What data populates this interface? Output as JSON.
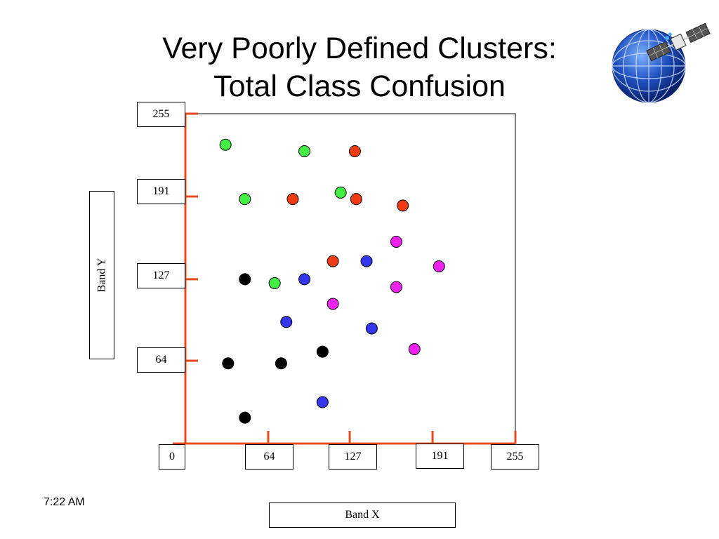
{
  "slide": {
    "title_line1": "Very Poorly Defined Clusters:",
    "title_line2": "Total Class Confusion",
    "time": "7:22 AM",
    "logo_icon": "satellite-globe-icon"
  },
  "chart_data": {
    "type": "scatter",
    "xlabel": "Band X",
    "ylabel": "Band Y",
    "xlim": [
      0,
      255
    ],
    "ylim": [
      0,
      255
    ],
    "x_ticks": [
      "0",
      "64",
      "127",
      "191",
      "255"
    ],
    "y_ticks": [
      "64",
      "127",
      "191",
      "255"
    ],
    "grid": false,
    "axis_color": "#e84a1c",
    "series": [
      {
        "color": "#44ee44",
        "points": [
          [
            31,
            231
          ],
          [
            92,
            226
          ],
          [
            46,
            189
          ],
          [
            120,
            194
          ],
          [
            69,
            124
          ]
        ]
      },
      {
        "color": "#f03c14",
        "points": [
          [
            131,
            226
          ],
          [
            83,
            189
          ],
          [
            132,
            189
          ],
          [
            168,
            184
          ],
          [
            114,
            141
          ]
        ]
      },
      {
        "color": "#ee22ee",
        "points": [
          [
            163,
            156
          ],
          [
            196,
            137
          ],
          [
            163,
            121
          ],
          [
            114,
            108
          ],
          [
            177,
            73
          ]
        ]
      },
      {
        "color": "#3535ee",
        "points": [
          [
            140,
            141
          ],
          [
            92,
            127
          ],
          [
            78,
            94
          ],
          [
            144,
            89
          ],
          [
            106,
            32
          ]
        ]
      },
      {
        "color": "#000000",
        "points": [
          [
            46,
            127
          ],
          [
            106,
            71
          ],
          [
            33,
            62
          ],
          [
            74,
            62
          ],
          [
            46,
            20
          ]
        ]
      }
    ]
  }
}
